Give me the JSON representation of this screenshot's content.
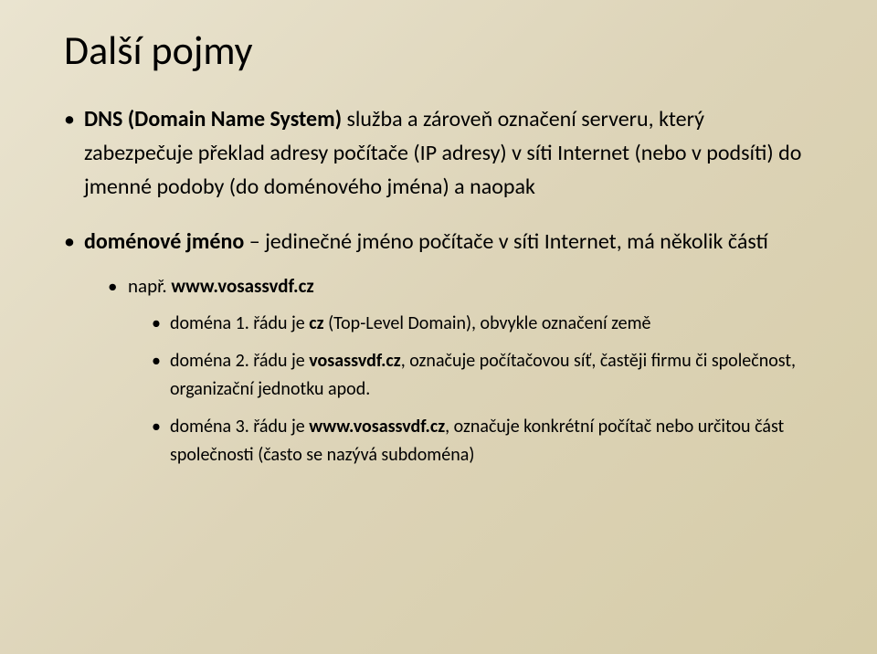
{
  "title": "Další pojmy",
  "b1": {
    "run1": "DNS (Domain Name System) ",
    "run2": "služba a zároveň označení serveru, který zabezpečuje překlad adresy počítače (IP adresy) v síti Internet (nebo v podsíti) do jmenné podoby (do doménového jména) a naopak"
  },
  "b2": {
    "run1": "doménové jméno ",
    "run2": "– jedinečné jméno počítače v síti Internet, má několik částí",
    "sub1": {
      "run1": "např. ",
      "run2": "www.vosassvdf.cz",
      "d1": {
        "run1": "doména 1. řádu je ",
        "run2": "cz",
        "run3": " (Top-Level Domain), obvykle označení země"
      },
      "d2": {
        "run1": "doména 2. řádu je ",
        "run2": "vosassvdf.cz",
        "run3": ", označuje počítačovou síť, častěji firmu či společnost, organizační jednotku apod."
      },
      "d3": {
        "run1": "doména 3. řádu je ",
        "run2": "www.vosassvdf.cz",
        "run3": ", označuje konkrétní počítač nebo určitou část společnosti (často se nazývá subdoména)"
      }
    }
  }
}
